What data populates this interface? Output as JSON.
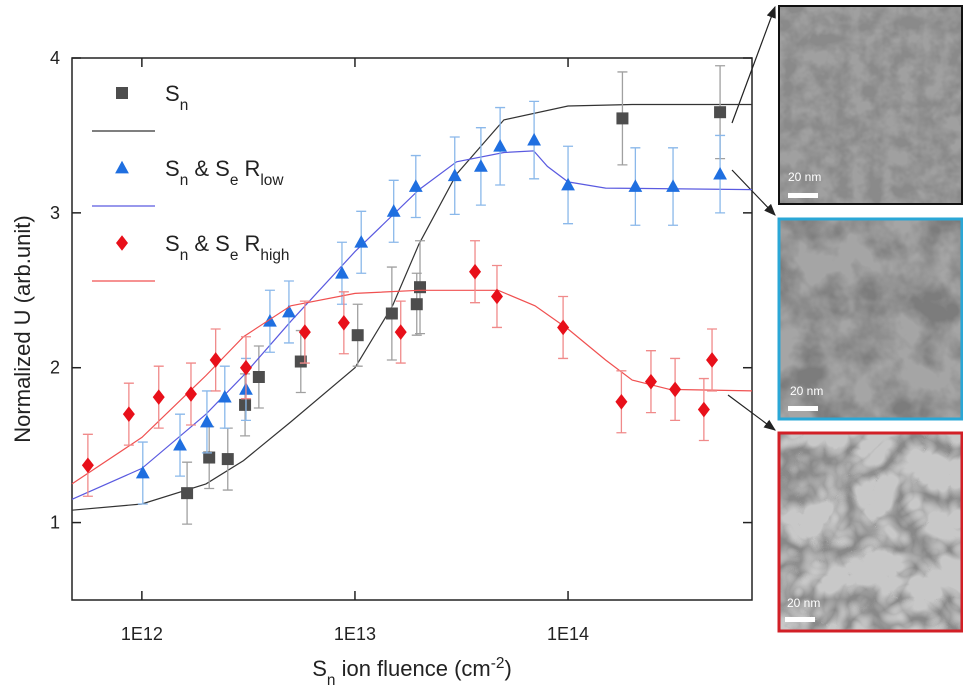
{
  "chart_data": {
    "type": "scatter",
    "xscale": "log",
    "x_label": [
      "S",
      {
        "sub": "n"
      },
      " ion fluence (cm",
      {
        "sup": "-2"
      },
      ")"
    ],
    "y_label": "Normalized U (arb.unit)",
    "xlim": [
      470000000000.0,
      730000000000000.0
    ],
    "ylim": [
      0.5,
      4
    ],
    "xticks": [
      {
        "value": 1000000000000.0,
        "label": "1E12"
      },
      {
        "value": 10000000000000.0,
        "label": "1E13"
      },
      {
        "value": 100000000000000.0,
        "label": "1E14"
      }
    ],
    "yticks": [
      1,
      2,
      3,
      4
    ],
    "legend": "top-left",
    "series": [
      {
        "name": [
          "S",
          {
            "sub": "n"
          }
        ],
        "marker": "square",
        "color": "#4d4d4d",
        "error_color": "#a0a0a0",
        "fit_color": "#333333",
        "x": [
          1630000000000.0,
          2070000000000.0,
          2530000000000.0,
          3050000000000.0,
          3540000000000.0,
          5570000000000.0,
          10300000000000.0,
          14900000000000.0,
          19500000000000.0,
          20200000000000.0,
          180000000000000.0,
          517000000000000.0
        ],
        "values": [
          1.19,
          1.42,
          1.41,
          1.76,
          1.94,
          2.04,
          2.21,
          2.35,
          2.41,
          2.52,
          3.61,
          3.65
        ],
        "errors": [
          0.2,
          0.2,
          0.2,
          0.2,
          0.2,
          0.2,
          0.2,
          0.3,
          0.2,
          0.3,
          0.3,
          0.3
        ],
        "fit": {
          "x": [
            470000000000.0,
            1000000000000.0,
            2000000000000.0,
            3000000000000.0,
            5000000000000.0,
            10000000000000.0,
            15000000000000.0,
            20000000000000.0,
            30000000000000.0,
            50000000000000.0,
            100000000000000.0,
            200000000000000.0,
            730000000000000.0
          ],
          "values": [
            1.08,
            1.12,
            1.25,
            1.4,
            1.65,
            2.0,
            2.4,
            2.8,
            3.25,
            3.6,
            3.69,
            3.7,
            3.7
          ]
        }
      },
      {
        "name": [
          "S",
          {
            "sub": "n"
          },
          " & S",
          {
            "sub": "e"
          },
          " R",
          {
            "sub": "low"
          }
        ],
        "marker": "triangle",
        "color": "#1f6fe0",
        "error_color": "#8ab8ea",
        "fit_color": "#5a5ae0",
        "x": [
          1010000000000.0,
          1510000000000.0,
          2020000000000.0,
          2450000000000.0,
          3080000000000.0,
          3990000000000.0,
          4900000000000.0,
          8690000000000.0,
          10700000000000.0,
          15200000000000.0,
          19300000000000.0,
          29400000000000.0,
          39000000000000.0,
          48000000000000.0,
          69300000000000.0,
          100000000000000.0,
          207000000000000.0,
          311000000000000.0,
          517000000000000.0
        ],
        "values": [
          1.32,
          1.5,
          1.65,
          1.81,
          1.86,
          2.3,
          2.36,
          2.61,
          2.81,
          3.01,
          3.17,
          3.24,
          3.3,
          3.43,
          3.47,
          3.18,
          3.17,
          3.17,
          3.25
        ],
        "errors": [
          0.2,
          0.2,
          0.2,
          0.2,
          0.2,
          0.2,
          0.2,
          0.2,
          0.2,
          0.2,
          0.2,
          0.25,
          0.25,
          0.25,
          0.25,
          0.25,
          0.25,
          0.25,
          0.25
        ],
        "fit": {
          "x": [
            470000000000.0,
            1000000000000.0,
            2000000000000.0,
            3000000000000.0,
            5000000000000.0,
            10000000000000.0,
            20000000000000.0,
            30000000000000.0,
            50000000000000.0,
            69000000000000.0,
            80000000000000.0,
            100000000000000.0,
            150000000000000.0,
            730000000000000.0
          ],
          "values": [
            1.15,
            1.35,
            1.7,
            1.95,
            2.3,
            2.75,
            3.15,
            3.33,
            3.39,
            3.4,
            3.3,
            3.2,
            3.16,
            3.15
          ]
        }
      },
      {
        "name": [
          "S",
          {
            "sub": "n"
          },
          " & S",
          {
            "sub": "e"
          },
          " R",
          {
            "sub": "high"
          }
        ],
        "marker": "diamond",
        "color": "#e8101a",
        "error_color": "#f08a8a",
        "fit_color": "#f05050",
        "x": [
          558000000000.0,
          869000000000.0,
          1200000000000.0,
          1700000000000.0,
          2220000000000.0,
          3080000000000.0,
          5820000000000.0,
          8870000000000.0,
          16400000000000.0,
          36600000000000.0,
          46400000000000.0,
          94800000000000.0,
          178000000000000.0,
          245000000000000.0,
          318000000000000.0,
          434000000000000.0,
          474000000000000.0
        ],
        "values": [
          1.37,
          1.7,
          1.81,
          1.83,
          2.05,
          2.0,
          2.23,
          2.29,
          2.23,
          2.62,
          2.46,
          2.26,
          1.78,
          1.91,
          1.86,
          1.73,
          2.05
        ],
        "errors": [
          0.2,
          0.2,
          0.2,
          0.2,
          0.2,
          0.2,
          0.2,
          0.2,
          0.2,
          0.2,
          0.2,
          0.2,
          0.2,
          0.2,
          0.2,
          0.2,
          0.2
        ],
        "fit": {
          "x": [
            470000000000.0,
            1000000000000.0,
            2000000000000.0,
            3000000000000.0,
            5000000000000.0,
            10000000000000.0,
            20000000000000.0,
            47000000000000.0,
            70000000000000.0,
            100000000000000.0,
            150000000000000.0,
            200000000000000.0,
            300000000000000.0,
            730000000000000.0
          ],
          "values": [
            1.25,
            1.55,
            1.95,
            2.2,
            2.4,
            2.48,
            2.5,
            2.5,
            2.4,
            2.25,
            2.05,
            1.92,
            1.86,
            1.85
          ]
        }
      }
    ]
  },
  "images": [
    {
      "scale_label": "20 nm"
    },
    {
      "scale_label": "20 nm"
    },
    {
      "scale_label": "20 nm"
    }
  ]
}
